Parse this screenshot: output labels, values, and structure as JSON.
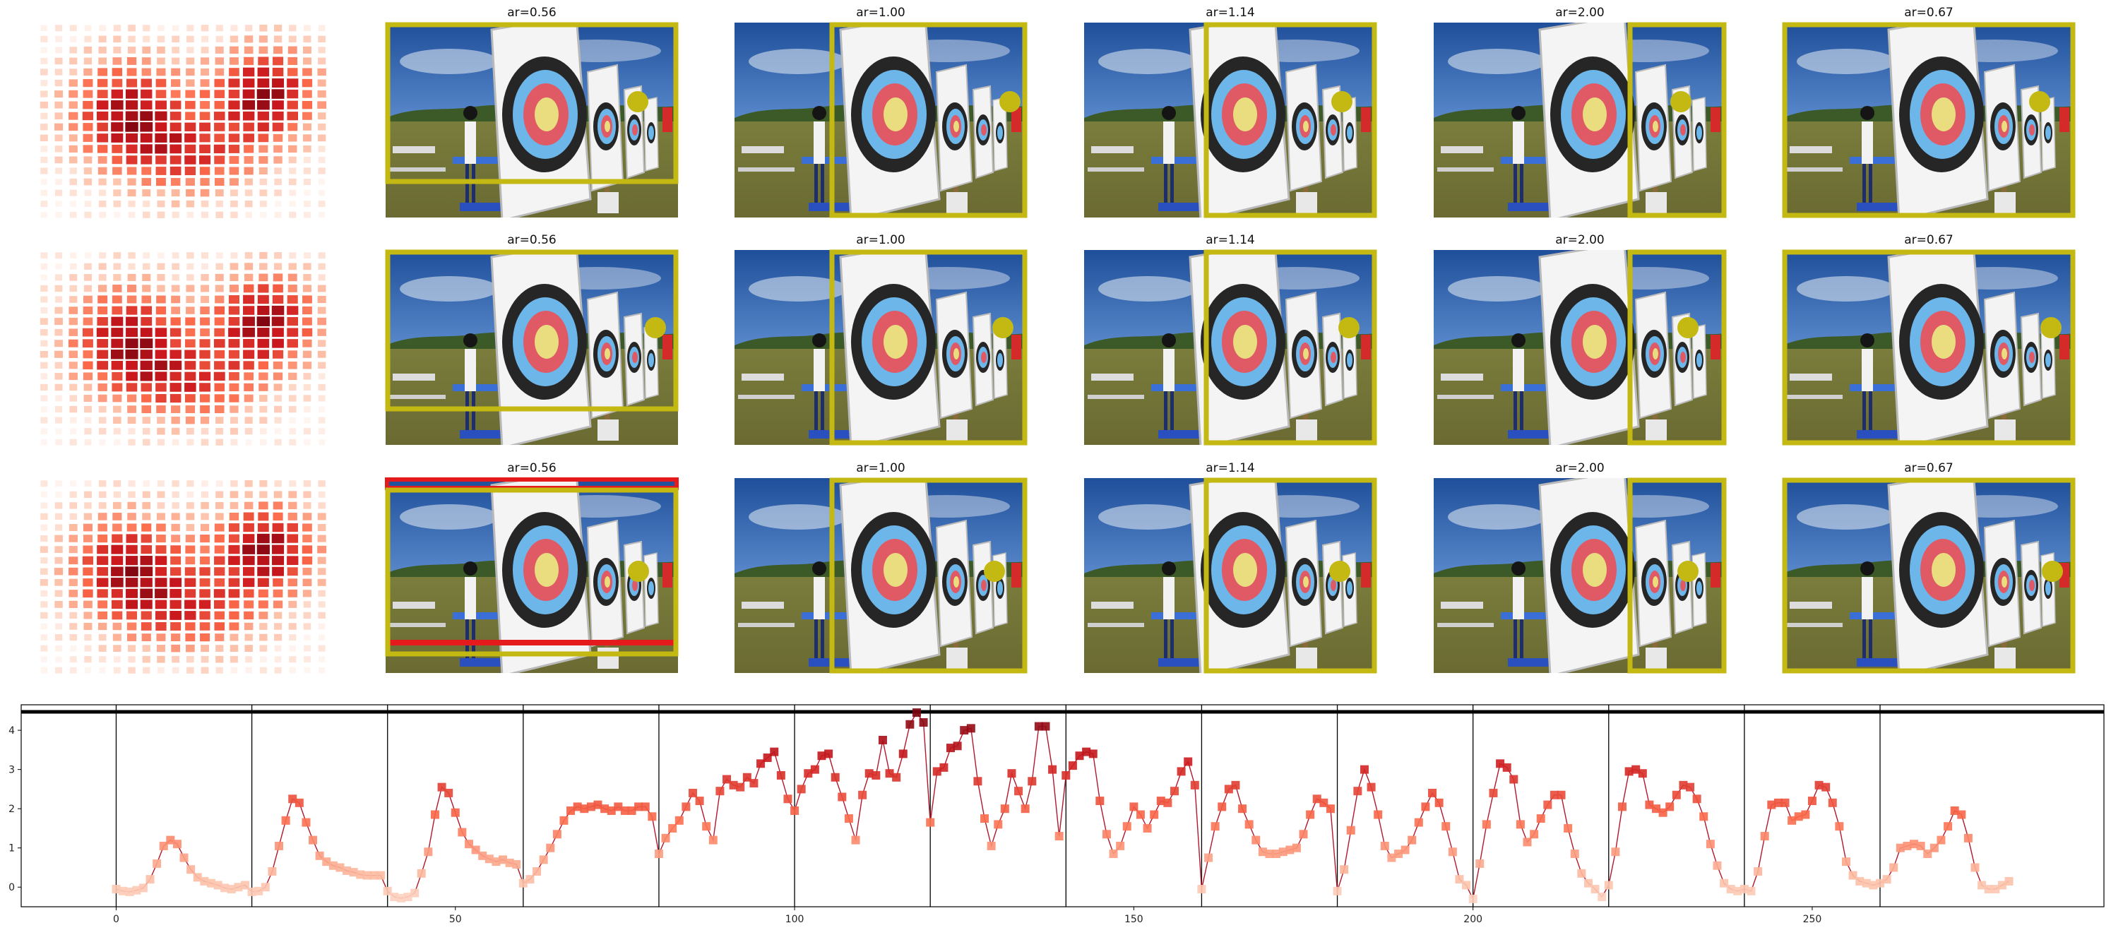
{
  "chart_data": [
    {
      "type": "heatmap",
      "panel": "attention-grid",
      "rows": 3,
      "grid_size": [
        18,
        20
      ],
      "colormap": "Reds",
      "description_of_pattern": "low values at left/bottom edges, high values center-left and upper-right"
    },
    {
      "type": "image-grid",
      "row_titles": [
        [
          "ar=0.56",
          "ar=1.00",
          "ar=1.14",
          "ar=2.00",
          "ar=0.67"
        ],
        [
          "ar=0.56",
          "ar=1.00",
          "ar=1.14",
          "ar=2.00",
          "ar=0.67"
        ],
        [
          "ar=0.56",
          "ar=1.00",
          "ar=1.14",
          "ar=2.00",
          "ar=0.67"
        ]
      ],
      "crop_color": "#c4b913",
      "highlight_color": "#e41a1c",
      "marker_color": "#c4b913"
    },
    {
      "type": "line",
      "title": "",
      "xlabel": "",
      "ylabel": "",
      "xlim": [
        -14,
        293
      ],
      "ylim": [
        -0.5,
        4.65
      ],
      "xticks": [
        0,
        50,
        100,
        150,
        200,
        250
      ],
      "yticks": [
        0,
        1,
        2,
        3,
        4
      ],
      "segment_boundaries": [
        0,
        20,
        40,
        60,
        80,
        100,
        120,
        140,
        160,
        180,
        200,
        220,
        240,
        260
      ],
      "series": [
        {
          "color": "#b2182b",
          "marker": "square",
          "x_start": 0,
          "values": [
            -0.05,
            -0.1,
            -0.12,
            -0.08,
            -0.02,
            0.2,
            0.6,
            1.05,
            1.2,
            1.1,
            0.75,
            0.45,
            0.25,
            0.15,
            0.1,
            0.05,
            -0.02,
            -0.05,
            0.0,
            0.05,
            -0.12,
            -0.1,
            0.0,
            0.4,
            1.05,
            1.7,
            2.25,
            2.15,
            1.65,
            1.2,
            0.8,
            0.65,
            0.55,
            0.5,
            0.42,
            0.38,
            0.32,
            0.3,
            0.3,
            0.3,
            -0.1,
            -0.25,
            -0.28,
            -0.25,
            -0.15,
            0.35,
            0.9,
            1.85,
            2.55,
            2.4,
            1.9,
            1.4,
            1.1,
            0.95,
            0.8,
            0.72,
            0.65,
            0.7,
            0.62,
            0.58,
            0.1,
            0.2,
            0.4,
            0.7,
            1.0,
            1.35,
            1.7,
            1.95,
            2.05,
            2.0,
            2.05,
            2.1,
            2.0,
            1.95,
            2.05,
            1.95,
            1.95,
            2.05,
            2.05,
            1.8,
            0.85,
            1.25,
            1.5,
            1.7,
            2.05,
            2.4,
            2.2,
            1.55,
            1.2,
            2.45,
            2.75,
            2.6,
            2.55,
            2.8,
            2.65,
            3.15,
            3.3,
            3.45,
            2.85,
            2.25,
            1.95,
            2.5,
            2.9,
            3.0,
            3.35,
            3.4,
            2.8,
            2.3,
            1.75,
            1.2,
            2.35,
            2.9,
            2.85,
            3.75,
            2.9,
            2.8,
            3.4,
            4.15,
            4.45,
            4.2,
            1.65,
            2.95,
            3.05,
            3.55,
            3.6,
            4.0,
            4.05,
            2.7,
            1.75,
            1.05,
            1.6,
            2.0,
            2.9,
            2.45,
            2.0,
            2.7,
            4.1,
            4.1,
            3.0,
            1.3,
            2.85,
            3.1,
            3.35,
            3.45,
            3.4,
            2.2,
            1.35,
            0.85,
            1.05,
            1.55,
            2.05,
            1.85,
            1.5,
            1.85,
            2.2,
            2.15,
            2.45,
            2.95,
            3.2,
            2.6,
            -0.05,
            0.75,
            1.55,
            2.05,
            2.5,
            2.6,
            2.0,
            1.6,
            1.2,
            0.9,
            0.85,
            0.85,
            0.9,
            0.95,
            1.0,
            1.35,
            1.85,
            2.25,
            2.15,
            2.0,
            -0.1,
            0.45,
            1.45,
            2.45,
            3.0,
            2.55,
            1.85,
            1.05,
            0.75,
            0.85,
            0.95,
            1.2,
            1.65,
            2.05,
            2.4,
            2.15,
            1.55,
            0.9,
            0.2,
            0.05,
            -0.3,
            0.6,
            1.6,
            2.4,
            3.15,
            3.05,
            2.75,
            1.6,
            1.15,
            1.35,
            1.75,
            2.1,
            2.35,
            2.35,
            1.5,
            0.85,
            0.35,
            0.1,
            -0.05,
            -0.25,
            0.05,
            0.9,
            2.05,
            2.95,
            3.0,
            2.9,
            2.1,
            2.0,
            1.9,
            2.05,
            2.35,
            2.6,
            2.55,
            2.25,
            1.8,
            1.1,
            0.55,
            0.1,
            -0.05,
            -0.1,
            -0.05,
            -0.1,
            0.4,
            1.3,
            2.1,
            2.15,
            2.15,
            1.7,
            1.8,
            1.85,
            2.2,
            2.6,
            2.55,
            2.15,
            1.55,
            0.65,
            0.3,
            0.15,
            0.1,
            0.05,
            0.1,
            0.2,
            0.5,
            1.0,
            1.05,
            1.1,
            1.05,
            0.85,
            1.0,
            1.2,
            1.55,
            1.95,
            1.85,
            1.25,
            0.5,
            0.05,
            -0.05,
            -0.05,
            0.05,
            0.15
          ]
        }
      ]
    }
  ]
}
